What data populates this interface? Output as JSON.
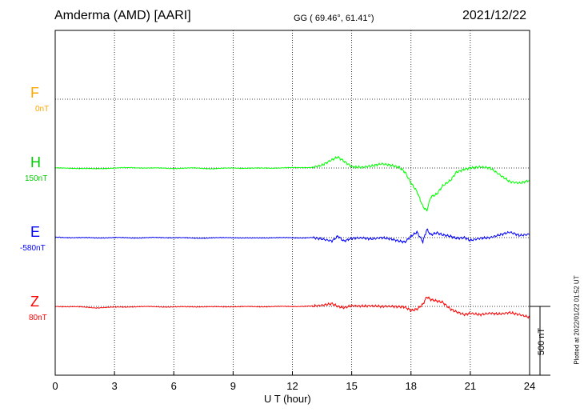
{
  "header": {
    "station": "Amderma (AMD)  [AARI]",
    "coords": "GG ( 69.46°,  61.41°)",
    "date": "2021/12/22"
  },
  "footer": {
    "plotted": "Plotted at 2022/01/22 01:52 UT"
  },
  "colors": {
    "F": "#ffa500",
    "H": "#00ff00",
    "E": "#0000ff",
    "Z": "#ff0000",
    "axis": "#000000"
  },
  "chart_data": {
    "type": "line",
    "xlabel": "U T (hour)",
    "xlim": [
      0,
      24
    ],
    "x_ticks": [
      "0",
      "3",
      "6",
      "9",
      "12",
      "15",
      "18",
      "21",
      "24"
    ],
    "scale_bar": {
      "label": "500 nT",
      "value_nT": 500
    },
    "grid": true,
    "series": [
      {
        "name": "F",
        "baseline_label": "0nT",
        "baseline_nT": 0,
        "x": [],
        "y": []
      },
      {
        "name": "H",
        "baseline_label": "150nT",
        "baseline_nT": 150,
        "x": [
          0,
          1,
          2,
          3,
          4,
          5,
          6,
          7,
          8,
          9,
          10,
          11,
          12,
          13,
          13.5,
          14,
          14.3,
          14.6,
          15,
          15.5,
          16,
          16.5,
          17,
          17.4,
          17.7,
          18,
          18.3,
          18.6,
          18.8,
          19,
          19.3,
          19.6,
          20,
          20.3,
          20.7,
          21,
          21.5,
          22,
          22.5,
          23,
          23.5,
          24
        ],
        "y": [
          150,
          148,
          144,
          150,
          152,
          150,
          147,
          150,
          145,
          150,
          148,
          150,
          152,
          155,
          170,
          210,
          230,
          200,
          160,
          155,
          165,
          180,
          170,
          155,
          120,
          40,
          -20,
          -130,
          -160,
          -60,
          -40,
          20,
          60,
          120,
          140,
          150,
          158,
          150,
          100,
          50,
          40,
          60
        ]
      },
      {
        "name": "E",
        "baseline_label": "-580nT",
        "baseline_nT": -580,
        "x": [
          0,
          1,
          2,
          3,
          4,
          5,
          6,
          7,
          8,
          9,
          10,
          11,
          12,
          13,
          13.5,
          14,
          14.3,
          14.6,
          15,
          15.5,
          16,
          16.5,
          17,
          17.4,
          17.7,
          18,
          18.3,
          18.6,
          18.8,
          19,
          19.3,
          19.6,
          20,
          20.3,
          20.7,
          21,
          21.5,
          22,
          22.5,
          23,
          23.5,
          24
        ],
        "y": [
          -578,
          -580,
          -582,
          -580,
          -582,
          -580,
          -580,
          -584,
          -582,
          -580,
          -584,
          -580,
          -582,
          -580,
          -590,
          -605,
          -570,
          -605,
          -585,
          -582,
          -590,
          -580,
          -590,
          -605,
          -612,
          -570,
          -540,
          -610,
          -520,
          -560,
          -545,
          -560,
          -570,
          -585,
          -580,
          -600,
          -585,
          -580,
          -560,
          -540,
          -565,
          -555
        ]
      },
      {
        "name": "Z",
        "baseline_label": "80nT",
        "baseline_nT": 80,
        "x": [
          0,
          1,
          2,
          3,
          4,
          5,
          6,
          7,
          8,
          9,
          10,
          11,
          12,
          13,
          13.5,
          14,
          14.3,
          14.6,
          15,
          15.5,
          16,
          16.5,
          17,
          17.4,
          17.7,
          18,
          18.3,
          18.6,
          18.8,
          19,
          19.3,
          19.6,
          20,
          20.3,
          20.7,
          21,
          21.5,
          22,
          22.5,
          23,
          23.5,
          24
        ],
        "y": [
          80,
          78,
          70,
          74,
          78,
          78,
          76,
          78,
          77,
          78,
          78,
          79,
          80,
          82,
          88,
          100,
          80,
          70,
          85,
          82,
          84,
          80,
          80,
          78,
          75,
          50,
          60,
          95,
          150,
          130,
          120,
          110,
          60,
          40,
          20,
          30,
          20,
          30,
          25,
          35,
          20,
          0
        ]
      }
    ]
  }
}
